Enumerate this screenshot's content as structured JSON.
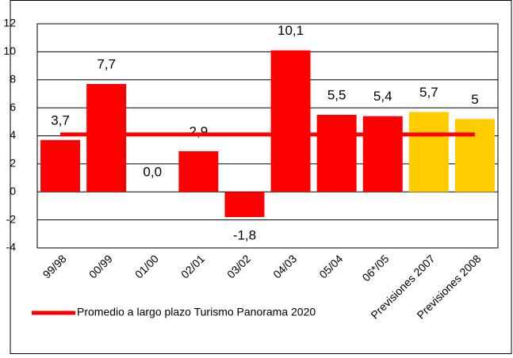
{
  "chart_data": {
    "type": "bar",
    "categories": [
      "99/98",
      "00/99",
      "01/00",
      "02/01",
      "03/02",
      "04/03",
      "05/04",
      "06*/05",
      "Previsiones 2007",
      "Previsiones 2008"
    ],
    "values": [
      3.7,
      7.7,
      0.0,
      2.9,
      -1.8,
      10.1,
      5.5,
      5.4,
      5.7,
      5.2
    ],
    "value_labels": [
      "3,7",
      "7,7",
      "0,0",
      "2,9",
      "-1,8",
      "10,1",
      "5,5",
      "5,4",
      "5,7",
      "5"
    ],
    "colors": [
      "#ff0000",
      "#ff0000",
      "#ff0000",
      "#ff0000",
      "#ff0000",
      "#ff0000",
      "#ff0000",
      "#ff0000",
      "#ffcc00",
      "#ffcc00"
    ],
    "average": {
      "name": "Promedio a largo plazo Turismo Panorama 2020",
      "value": 4.1,
      "color": "#ff0000"
    },
    "ylim": [
      -4,
      12
    ],
    "yticks": [
      -4,
      -2,
      0,
      2,
      4,
      6,
      8,
      10,
      12
    ],
    "grid": true
  }
}
